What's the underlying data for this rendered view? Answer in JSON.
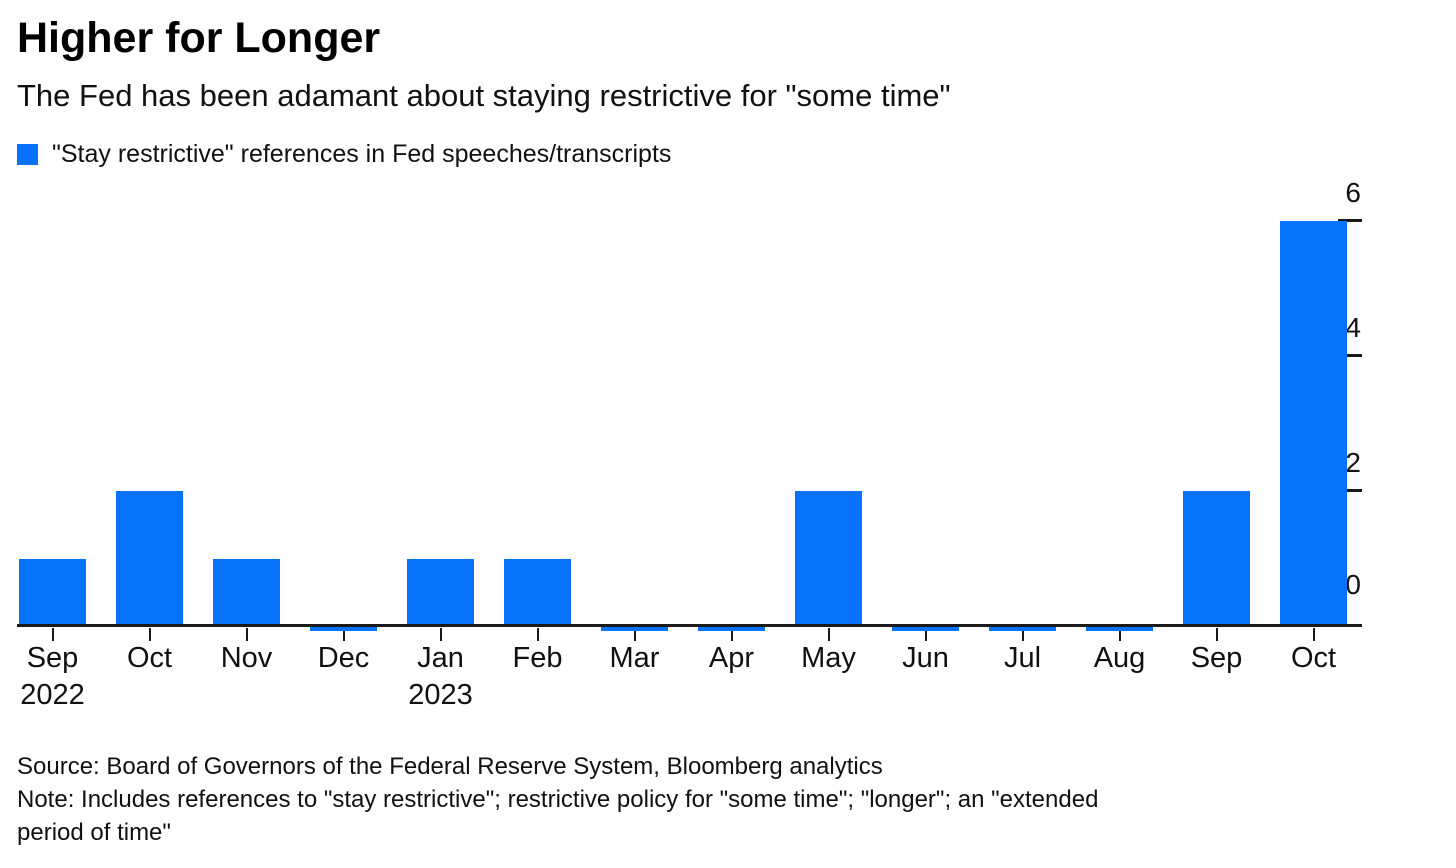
{
  "header": {
    "title": "Higher for Longer",
    "subtitle": "The Fed has been adamant about staying restrictive for \"some time\""
  },
  "legend": {
    "label": "\"Stay restrictive\" references in Fed speeches/transcripts",
    "swatch_color": "#0673fa"
  },
  "chart_data": {
    "type": "bar",
    "title": "Higher for Longer",
    "subtitle": "The Fed has been adamant about staying restrictive for \"some time\"",
    "series_name": "\"Stay restrictive\" references in Fed speeches/transcripts",
    "categories": [
      "Sep",
      "Oct",
      "Nov",
      "Dec",
      "Jan",
      "Feb",
      "Mar",
      "Apr",
      "May",
      "Jun",
      "Jul",
      "Aug",
      "Sep",
      "Oct"
    ],
    "year_row": [
      "2022",
      "",
      "",
      "",
      "2023",
      "",
      "",
      "",
      "",
      "",
      "",
      "",
      "",
      ""
    ],
    "values": [
      1,
      2,
      1,
      0,
      1,
      1,
      0,
      0,
      2,
      0,
      0,
      0,
      2,
      6
    ],
    "xlabel": "",
    "ylabel": "",
    "ylim": [
      0,
      6.5
    ],
    "yticks": [
      0,
      2,
      4,
      6
    ],
    "y_axis_side": "right",
    "grid": false,
    "legend_position": "top-left",
    "bar_color": "#0673fa",
    "axis_color": "#1a1a1a"
  },
  "footer": {
    "source": "Source: Board of Governors of the Federal Reserve System, Bloomberg analytics",
    "note_lines": [
      "Note: Includes references to \"stay restrictive\"; restrictive policy for \"some time\"; \"longer\"; an \"extended",
      "period of time\""
    ]
  }
}
